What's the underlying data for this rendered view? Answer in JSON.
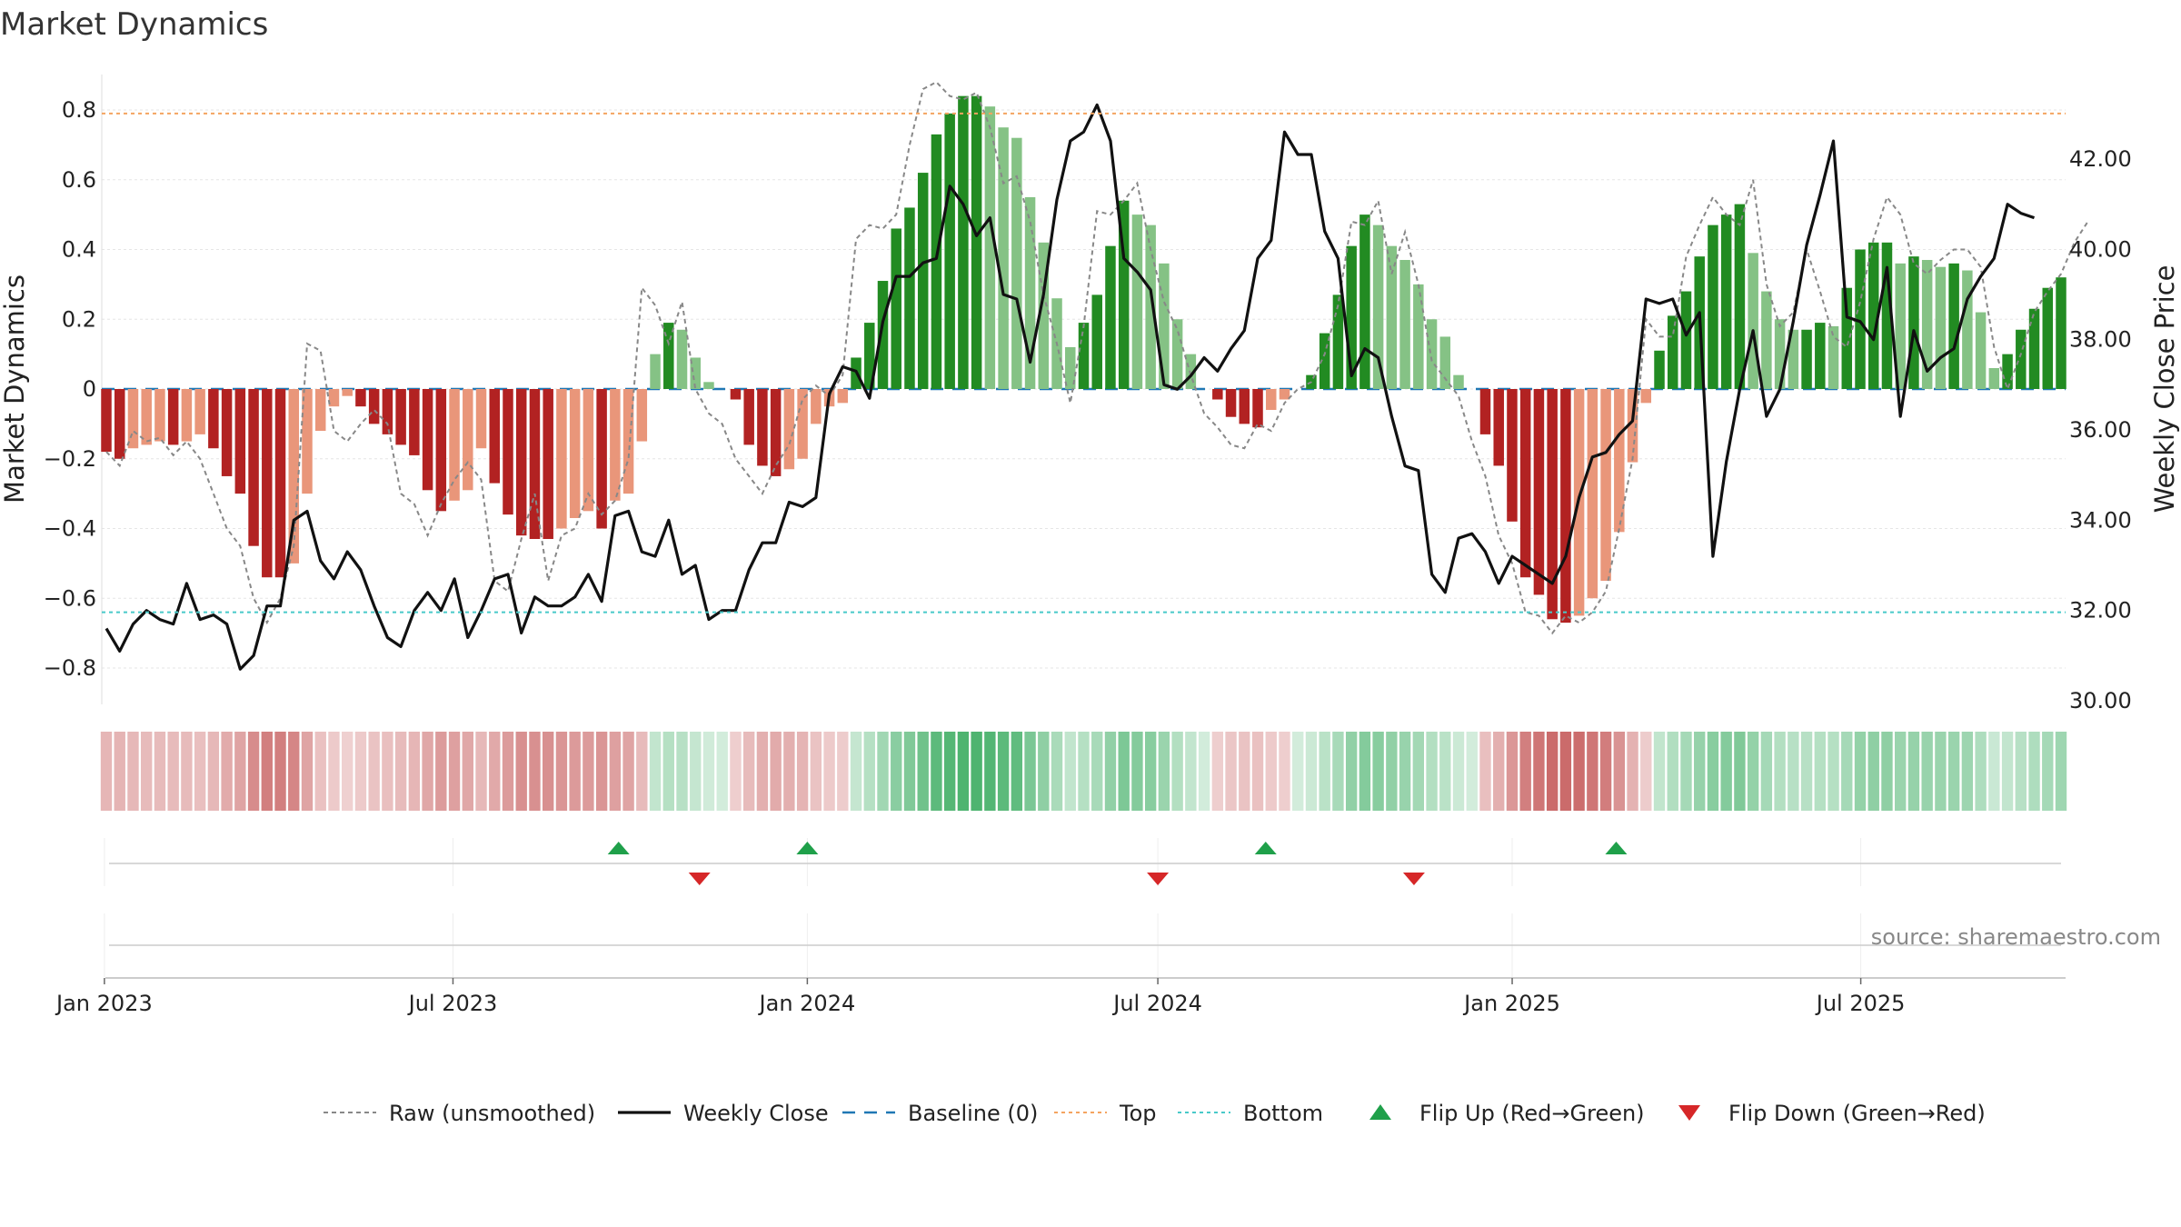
{
  "chart_data": {
    "type": "bar",
    "title": "Market Dynamics",
    "ylabel_left": "Market Dynamics",
    "ylabel_right": "Weekly Close Price",
    "xlabel": "",
    "grid": true,
    "legend_position": "bottom-center",
    "source": "source: sharemaestro.com",
    "x_start": "2023-01-02",
    "x_end": "2025-10-13",
    "x_ticks": [
      "Jan 2023",
      "Jul 2023",
      "Jan 2024",
      "Jul 2024",
      "Jan 2025",
      "Jul 2025"
    ],
    "y_left_range": [
      -0.9,
      0.9
    ],
    "y_left_ticks": [
      "0.8",
      "0.6",
      "0.4",
      "0.2",
      "0",
      "−0.2",
      "−0.4",
      "−0.6",
      "−0.8"
    ],
    "y_left_tick_values": [
      0.8,
      0.6,
      0.4,
      0.2,
      0,
      -0.2,
      -0.4,
      -0.6,
      -0.8
    ],
    "y_right_range": [
      30.0,
      43.6
    ],
    "y_right_ticks": [
      "42.00",
      "40.00",
      "38.00",
      "36.00",
      "34.00",
      "32.00",
      "30.00"
    ],
    "y_right_tick_values": [
      42,
      40,
      38,
      36,
      34,
      32,
      30
    ],
    "top_level": 0.79,
    "bottom_level": -0.64,
    "colors": {
      "strong_negative": "#b22222",
      "weak_negative": "#e9967a",
      "strong_positive": "#228b22",
      "weak_positive": "#85c285",
      "raw_line": "#888888",
      "close_line": "#111111",
      "baseline": "#1f77b4",
      "top": "#f4a460",
      "bottom": "#48c9c9",
      "flip_up": "#1fa04a",
      "flip_down": "#d62728",
      "heat_positive": "#1fa04a",
      "heat_negative": "#b22222"
    },
    "bars": [
      -0.18,
      -0.2,
      -0.17,
      -0.16,
      -0.15,
      -0.16,
      -0.15,
      -0.13,
      -0.17,
      -0.25,
      -0.3,
      -0.45,
      -0.54,
      -0.54,
      -0.5,
      -0.3,
      -0.12,
      -0.05,
      -0.02,
      -0.05,
      -0.1,
      -0.13,
      -0.16,
      -0.19,
      -0.29,
      -0.35,
      -0.32,
      -0.29,
      -0.17,
      -0.27,
      -0.36,
      -0.42,
      -0.43,
      -0.43,
      -0.4,
      -0.37,
      -0.35,
      -0.4,
      -0.32,
      -0.3,
      -0.15,
      0.1,
      0.19,
      0.17,
      0.09,
      0.02,
      0.0,
      -0.03,
      -0.16,
      -0.22,
      -0.25,
      -0.23,
      -0.2,
      -0.1,
      -0.05,
      -0.04,
      0.09,
      0.19,
      0.31,
      0.46,
      0.52,
      0.62,
      0.73,
      0.79,
      0.84,
      0.84,
      0.81,
      0.75,
      0.72,
      0.55,
      0.42,
      0.26,
      0.12,
      0.19,
      0.27,
      0.41,
      0.54,
      0.5,
      0.47,
      0.36,
      0.2,
      0.1,
      0.0,
      -0.03,
      -0.08,
      -0.1,
      -0.11,
      -0.06,
      -0.03,
      0.0,
      0.04,
      0.16,
      0.27,
      0.41,
      0.5,
      0.47,
      0.41,
      0.37,
      0.3,
      0.2,
      0.15,
      0.04,
      0.0,
      -0.13,
      -0.22,
      -0.38,
      -0.54,
      -0.59,
      -0.66,
      -0.67,
      -0.65,
      -0.6,
      -0.55,
      -0.41,
      -0.21,
      -0.04,
      0.11,
      0.21,
      0.28,
      0.38,
      0.47,
      0.5,
      0.53,
      0.39,
      0.28,
      0.2,
      0.17,
      0.17,
      0.19,
      0.18,
      0.29,
      0.4,
      0.42,
      0.42,
      0.36,
      0.38,
      0.37,
      0.35,
      0.36,
      0.34,
      0.22,
      0.06,
      0.1,
      0.17,
      0.23,
      0.29,
      0.32
    ],
    "raw": [
      -0.18,
      -0.22,
      -0.12,
      -0.15,
      -0.14,
      -0.19,
      -0.15,
      -0.2,
      -0.3,
      -0.4,
      -0.45,
      -0.6,
      -0.67,
      -0.6,
      -0.45,
      0.13,
      0.11,
      -0.12,
      -0.15,
      -0.1,
      -0.06,
      -0.1,
      -0.3,
      -0.33,
      -0.42,
      -0.33,
      -0.26,
      -0.21,
      -0.26,
      -0.55,
      -0.58,
      -0.43,
      -0.3,
      -0.55,
      -0.42,
      -0.4,
      -0.3,
      -0.36,
      -0.32,
      -0.2,
      0.29,
      0.24,
      0.13,
      0.25,
      0.0,
      -0.07,
      -0.1,
      -0.2,
      -0.25,
      -0.3,
      -0.22,
      -0.16,
      -0.03,
      0.01,
      -0.02,
      0.04,
      0.43,
      0.47,
      0.46,
      0.5,
      0.7,
      0.86,
      0.88,
      0.84,
      0.83,
      0.85,
      0.75,
      0.59,
      0.61,
      0.48,
      0.27,
      0.13,
      -0.04,
      0.18,
      0.51,
      0.5,
      0.54,
      0.59,
      0.4,
      0.25,
      0.17,
      0.04,
      -0.07,
      -0.11,
      -0.16,
      -0.17,
      -0.1,
      -0.12,
      -0.04,
      0.0,
      0.02,
      0.1,
      0.24,
      0.48,
      0.47,
      0.54,
      0.33,
      0.45,
      0.3,
      0.08,
      0.03,
      -0.02,
      -0.15,
      -0.25,
      -0.42,
      -0.5,
      -0.64,
      -0.65,
      -0.7,
      -0.65,
      -0.67,
      -0.64,
      -0.58,
      -0.4,
      -0.2,
      0.2,
      0.15,
      0.15,
      0.38,
      0.47,
      0.55,
      0.5,
      0.47,
      0.6,
      0.3,
      0.18,
      0.22,
      0.4,
      0.28,
      0.15,
      0.12,
      0.25,
      0.43,
      0.55,
      0.5,
      0.36,
      0.33,
      0.37,
      0.4,
      0.4,
      0.35,
      0.12,
      0.0,
      0.1,
      0.22,
      0.28,
      0.33,
      0.42,
      0.48
    ],
    "close": [
      31.6,
      31.1,
      31.7,
      32.0,
      31.8,
      31.7,
      32.6,
      31.8,
      31.9,
      31.7,
      30.7,
      31.0,
      32.1,
      32.1,
      34.0,
      34.2,
      33.1,
      32.7,
      33.3,
      32.9,
      32.1,
      31.4,
      31.2,
      32.0,
      32.4,
      32.0,
      32.7,
      31.4,
      32.0,
      32.7,
      32.8,
      31.5,
      32.3,
      32.1,
      32.1,
      32.3,
      32.8,
      32.2,
      34.1,
      34.2,
      33.3,
      33.2,
      34.0,
      32.8,
      33.0,
      31.8,
      32.0,
      32.0,
      32.9,
      33.5,
      33.5,
      34.4,
      34.3,
      34.5,
      36.8,
      37.4,
      37.3,
      36.7,
      38.4,
      39.4,
      39.4,
      39.7,
      39.8,
      41.4,
      41.0,
      40.3,
      40.7,
      39.0,
      38.9,
      37.5,
      39.0,
      41.1,
      42.4,
      42.6,
      43.2,
      42.4,
      39.8,
      39.5,
      39.1,
      37.0,
      36.9,
      37.2,
      37.6,
      37.3,
      37.8,
      38.2,
      39.8,
      40.2,
      42.6,
      42.1,
      42.1,
      40.4,
      39.8,
      37.2,
      37.8,
      37.6,
      36.3,
      35.2,
      35.1,
      32.8,
      32.4,
      33.6,
      33.7,
      33.3,
      32.6,
      33.2,
      33.0,
      32.8,
      32.6,
      33.2,
      34.5,
      35.4,
      35.5,
      35.9,
      36.2,
      38.9,
      38.8,
      38.9,
      38.1,
      38.6,
      33.2,
      35.3,
      36.9,
      38.2,
      36.3,
      36.9,
      38.4,
      40.1,
      41.2,
      42.4,
      38.5,
      38.4,
      38.0,
      39.6,
      36.3,
      38.2,
      37.3,
      37.6,
      37.8,
      38.9,
      39.4,
      39.8,
      41.0,
      40.8,
      40.7
    ]
  },
  "flips": {
    "up": [
      "2023-09-25",
      "2024-01-01",
      "2024-08-26",
      "2025-02-24"
    ],
    "down": [
      "2023-11-06",
      "2024-07-01",
      "2024-11-11"
    ]
  },
  "legend": [
    {
      "label": "Raw (unsmoothed)",
      "kind": "dashed-gray"
    },
    {
      "label": "Weekly Close",
      "kind": "solid-black"
    },
    {
      "label": "Baseline (0)",
      "kind": "dashed-blue"
    },
    {
      "label": "Top",
      "kind": "dotted-orange"
    },
    {
      "label": "Bottom",
      "kind": "dotted-cyan"
    },
    {
      "label": "Flip Up (Red→Green)",
      "kind": "triangle-up"
    },
    {
      "label": "Flip Down (Green→Red)",
      "kind": "triangle-down"
    }
  ]
}
